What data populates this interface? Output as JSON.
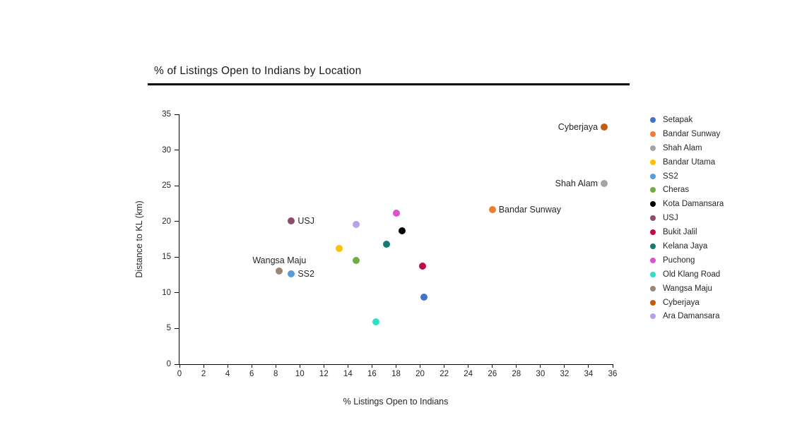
{
  "chart_data": {
    "type": "scatter",
    "title": "% of Listings Open to Indians by Location",
    "xlabel": "% Listings Open to Indians",
    "ylabel": "Distance to KL (km)",
    "xlim": [
      0,
      36
    ],
    "ylim": [
      0,
      35
    ],
    "x_ticks": [
      0,
      2,
      4,
      6,
      8,
      10,
      12,
      14,
      16,
      18,
      20,
      22,
      24,
      26,
      28,
      30,
      32,
      34,
      36
    ],
    "y_ticks": [
      0,
      5,
      10,
      15,
      20,
      25,
      30,
      35
    ],
    "grid": false,
    "legend_position": "right",
    "series": [
      {
        "name": "Setapak",
        "color": "#4472C4",
        "x": 20.3,
        "y": 9.4
      },
      {
        "name": "Bandar Sunway",
        "color": "#ED7D31",
        "x": 26.0,
        "y": 21.7,
        "label_placement": "right"
      },
      {
        "name": "Shah Alam",
        "color": "#A5A5A5",
        "x": 35.3,
        "y": 25.3,
        "label_placement": "left"
      },
      {
        "name": "Bandar Utama",
        "color": "#FFC000",
        "x": 13.3,
        "y": 16.2
      },
      {
        "name": "SS2",
        "color": "#5B9BD5",
        "x": 9.3,
        "y": 12.7,
        "label_placement": "right"
      },
      {
        "name": "Cheras",
        "color": "#70AD47",
        "x": 14.7,
        "y": 14.5
      },
      {
        "name": "Kota Damansara",
        "color": "#000000",
        "x": 18.5,
        "y": 18.7
      },
      {
        "name": "USJ",
        "color": "#8E4C6C",
        "x": 9.3,
        "y": 20.1,
        "label_placement": "right"
      },
      {
        "name": "Bukit Jalil",
        "color": "#C00C45",
        "x": 20.2,
        "y": 13.7
      },
      {
        "name": "Kelana Jaya",
        "color": "#137C72",
        "x": 17.2,
        "y": 16.8
      },
      {
        "name": "Puchong",
        "color": "#D951D5",
        "x": 18.0,
        "y": 21.2
      },
      {
        "name": "Old Klang Road",
        "color": "#30DFC9",
        "x": 16.3,
        "y": 5.9
      },
      {
        "name": "Wangsa Maju",
        "color": "#998877",
        "x": 8.3,
        "y": 13.1,
        "label_placement": "above"
      },
      {
        "name": "Cyberjaya",
        "color": "#C55A11",
        "x": 35.3,
        "y": 33.2,
        "label_placement": "left"
      },
      {
        "name": "Ara Damansara",
        "color": "#B9A0E8",
        "x": 14.7,
        "y": 19.6
      }
    ]
  }
}
